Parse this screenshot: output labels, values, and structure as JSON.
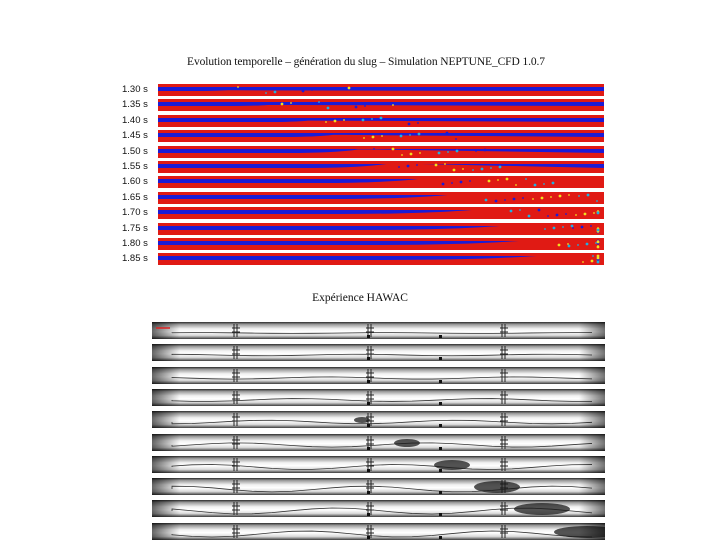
{
  "figure": {
    "title": "Evolution temporelle – génération du slug – Simulation NEPTUNE_CFD 1.0.7",
    "experiment_title": "Expérience HAWAC"
  },
  "simulation": {
    "time_labels": [
      "1.30 s",
      "1.35 s",
      "1.40 s",
      "1.45 s",
      "1.50 s",
      "1.55 s",
      "1.60 s",
      "1.65 s",
      "1.70 s",
      "1.75 s",
      "1.80 s",
      "1.85 s"
    ],
    "colors": {
      "liquid": "#e01a14",
      "gas": "#1b1bd6",
      "interface": "#f0e020"
    }
  },
  "experiment": {
    "frame_count": 10
  }
}
